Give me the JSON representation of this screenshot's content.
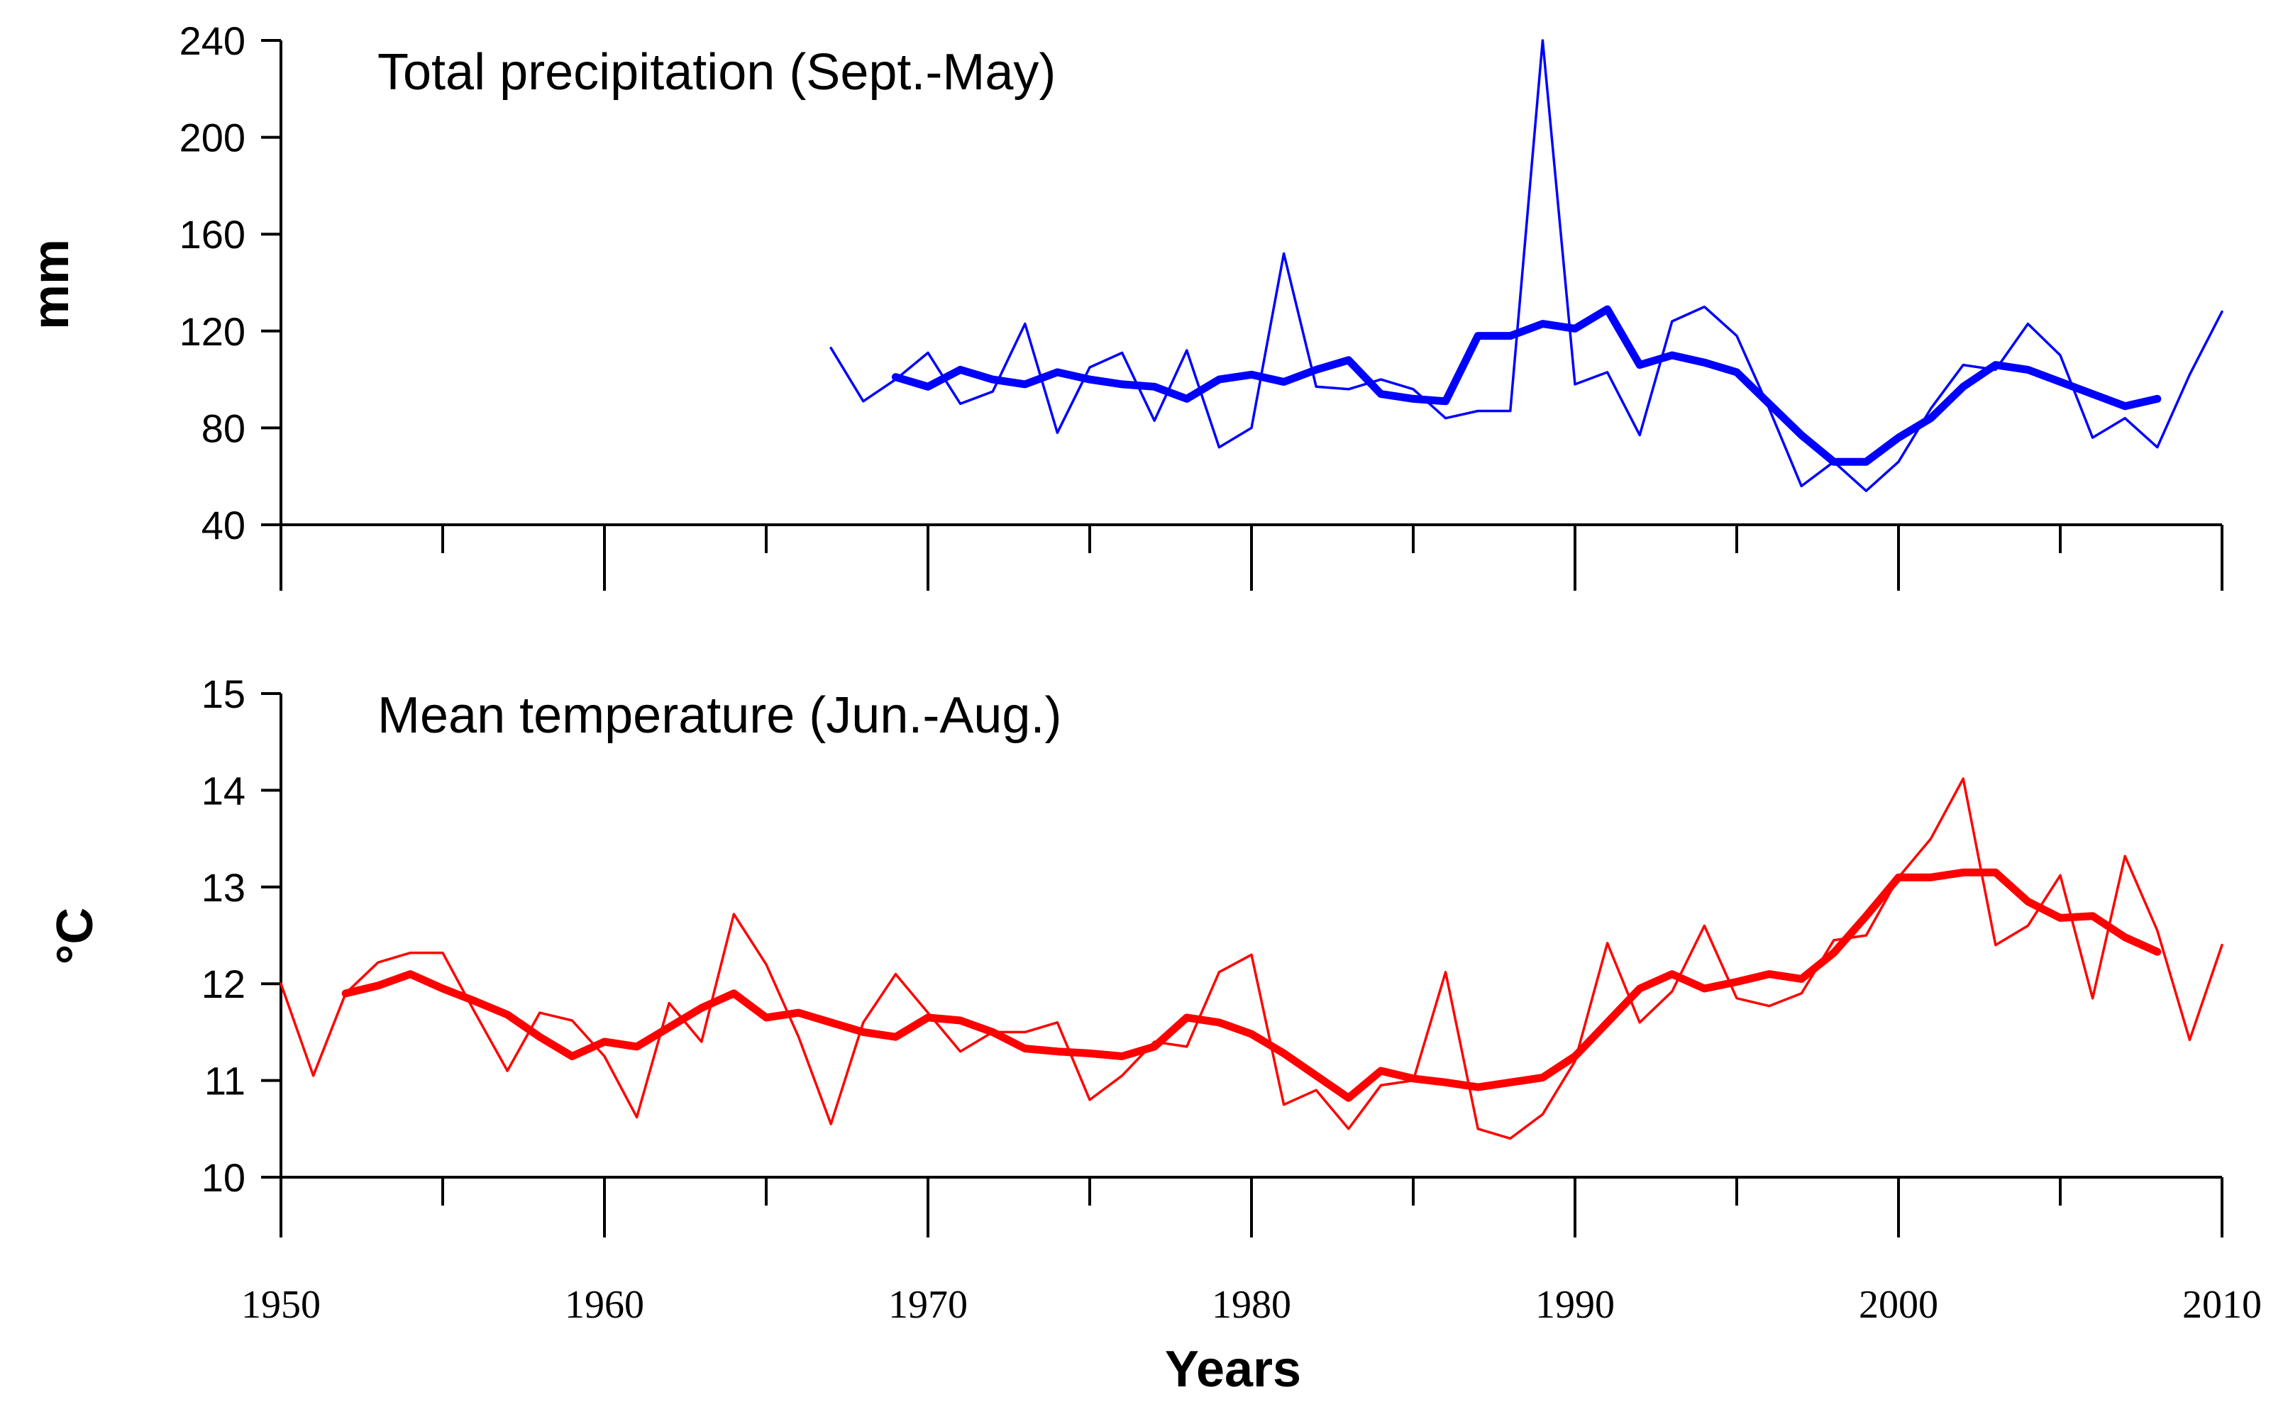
{
  "figure": {
    "xlabel": "Years",
    "x_ticks": [
      "1950",
      "1960",
      "1970",
      "1980",
      "1990",
      "2000",
      "2010"
    ]
  },
  "chart_data": [
    {
      "type": "line",
      "title": "Total precipitation (Sept.-May)",
      "ylabel": "mm",
      "xlim": [
        1950,
        2010
      ],
      "ylim": [
        40,
        240
      ],
      "y_ticks": [
        "40",
        "80",
        "120",
        "160",
        "200",
        "240"
      ],
      "colors": {
        "series": "#0000ff"
      },
      "series": [
        {
          "style": "thin",
          "x": [
            1967,
            1968,
            1969,
            1970,
            1971,
            1972,
            1973,
            1974,
            1975,
            1976,
            1977,
            1978,
            1979,
            1980,
            1981,
            1982,
            1983,
            1984,
            1985,
            1986,
            1987,
            1988,
            1989,
            1990,
            1991,
            1992,
            1993,
            1994,
            1995,
            1996,
            1997,
            1998,
            1999,
            2000,
            2001,
            2002,
            2003,
            2004,
            2005,
            2006,
            2007,
            2008,
            2009,
            2010
          ],
          "values": [
            113,
            91,
            100,
            111,
            90,
            95,
            123,
            78,
            105,
            111,
            83,
            112,
            72,
            80,
            152,
            97,
            96,
            100,
            96,
            84,
            87,
            87,
            240,
            98,
            103,
            77,
            124,
            130,
            118,
            88,
            56,
            66,
            54,
            66,
            88,
            106,
            104,
            123,
            110,
            76,
            84,
            72,
            102,
            128
          ]
        },
        {
          "style": "thick",
          "x": [
            1969,
            1970,
            1971,
            1972,
            1973,
            1974,
            1975,
            1976,
            1977,
            1978,
            1979,
            1980,
            1981,
            1982,
            1983,
            1984,
            1985,
            1986,
            1987,
            1988,
            1989,
            1990,
            1991,
            1992,
            1993,
            1994,
            1995,
            1996,
            1997,
            1998,
            1999,
            2000,
            2001,
            2002,
            2003,
            2004,
            2005,
            2006,
            2007,
            2008
          ],
          "values": [
            101,
            97,
            104,
            100,
            98,
            103,
            100,
            98,
            97,
            92,
            100,
            102,
            99,
            104,
            108,
            94,
            92,
            91,
            118,
            118,
            123,
            121,
            129,
            106,
            110,
            107,
            103,
            90,
            77,
            66,
            66,
            76,
            84,
            97,
            106,
            104,
            99,
            94,
            89,
            92
          ]
        }
      ]
    },
    {
      "type": "line",
      "title": "Mean temperature (Jun.-Aug.)",
      "ylabel": "°C",
      "xlim": [
        1950,
        2010
      ],
      "ylim": [
        10,
        15
      ],
      "y_ticks": [
        "10",
        "11",
        "12",
        "13",
        "14",
        "15"
      ],
      "colors": {
        "series": "#ff0000"
      },
      "series": [
        {
          "style": "thin",
          "x": [
            1950,
            1951,
            1952,
            1953,
            1954,
            1955,
            1956,
            1957,
            1958,
            1959,
            1960,
            1961,
            1962,
            1963,
            1964,
            1965,
            1966,
            1967,
            1968,
            1969,
            1970,
            1971,
            1972,
            1973,
            1974,
            1975,
            1976,
            1977,
            1978,
            1979,
            1980,
            1981,
            1982,
            1983,
            1984,
            1985,
            1986,
            1987,
            1988,
            1989,
            1990,
            1991,
            1992,
            1993,
            1994,
            1995,
            1996,
            1997,
            1998,
            1999,
            2000,
            2001,
            2002,
            2003,
            2004,
            2005,
            2006,
            2007,
            2008,
            2009,
            2010
          ],
          "values": [
            12.0,
            11.05,
            11.9,
            12.22,
            12.32,
            12.32,
            11.7,
            11.1,
            11.7,
            11.62,
            11.25,
            10.62,
            11.8,
            11.4,
            12.72,
            12.2,
            11.45,
            10.55,
            11.6,
            12.1,
            11.7,
            11.3,
            11.5,
            11.5,
            11.6,
            10.8,
            11.05,
            11.4,
            11.35,
            12.12,
            12.3,
            10.75,
            10.9,
            10.5,
            10.95,
            11.0,
            12.12,
            10.5,
            10.4,
            10.65,
            11.2,
            12.42,
            11.6,
            11.92,
            12.6,
            11.85,
            11.77,
            11.9,
            12.45,
            12.5,
            13.1,
            13.5,
            14.12,
            12.4,
            12.6,
            13.12,
            11.85,
            13.32,
            12.55,
            11.42,
            12.4
          ]
        },
        {
          "style": "thick",
          "x": [
            1952,
            1953,
            1954,
            1955,
            1956,
            1957,
            1958,
            1959,
            1960,
            1961,
            1962,
            1963,
            1964,
            1965,
            1966,
            1967,
            1968,
            1969,
            1970,
            1971,
            1972,
            1973,
            1974,
            1975,
            1976,
            1977,
            1978,
            1979,
            1980,
            1981,
            1982,
            1983,
            1984,
            1985,
            1986,
            1987,
            1988,
            1989,
            1990,
            1991,
            1992,
            1993,
            1994,
            1995,
            1996,
            1997,
            1998,
            1999,
            2000,
            2001,
            2002,
            2003,
            2004,
            2005,
            2006,
            2007,
            2008
          ],
          "values": [
            11.9,
            11.98,
            12.1,
            11.95,
            11.82,
            11.68,
            11.45,
            11.25,
            11.4,
            11.35,
            11.55,
            11.75,
            11.9,
            11.65,
            11.7,
            11.6,
            11.5,
            11.45,
            11.65,
            11.62,
            11.5,
            11.33,
            11.3,
            11.28,
            11.25,
            11.35,
            11.65,
            11.6,
            11.48,
            11.28,
            11.05,
            10.82,
            11.1,
            11.02,
            10.98,
            10.93,
            10.98,
            11.03,
            11.25,
            11.6,
            11.95,
            12.1,
            11.95,
            12.02,
            12.1,
            12.05,
            12.32,
            12.7,
            13.1,
            13.1,
            13.15,
            13.15,
            12.85,
            12.68,
            12.7,
            12.48,
            12.33
          ]
        }
      ]
    }
  ]
}
